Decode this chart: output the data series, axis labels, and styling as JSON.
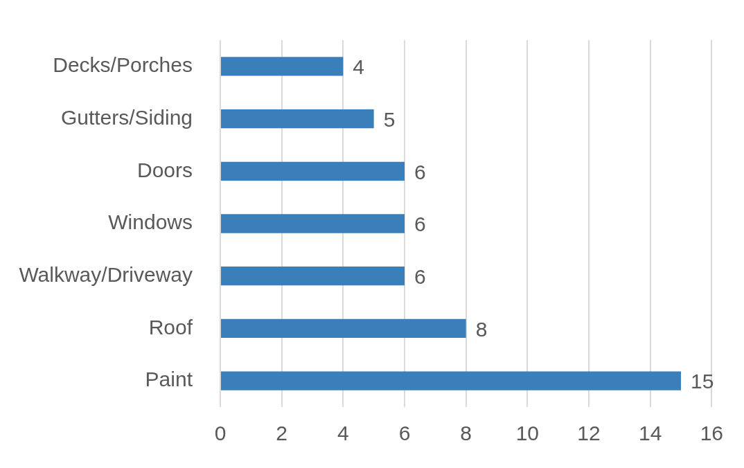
{
  "chart_data": {
    "type": "bar",
    "orientation": "horizontal",
    "categories": [
      "Decks/Porches",
      "Gutters/Siding",
      "Doors",
      "Windows",
      "Walkway/Driveway",
      "Roof",
      "Paint"
    ],
    "values": [
      4,
      5,
      6,
      6,
      6,
      8,
      15
    ],
    "color": "#3a7fba",
    "xlim": [
      0,
      16
    ],
    "xticks": [
      0,
      2,
      4,
      6,
      8,
      10,
      12,
      14,
      16
    ],
    "grid": "x",
    "legend": false,
    "data_labels": true
  }
}
